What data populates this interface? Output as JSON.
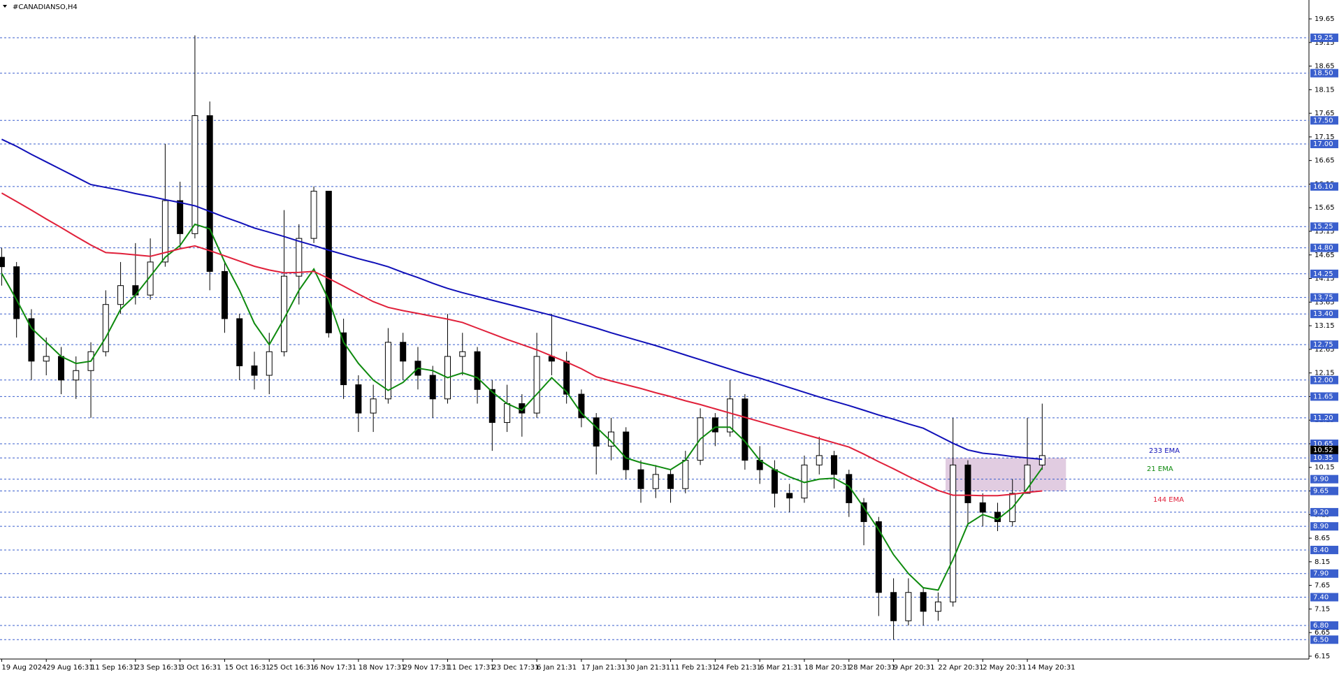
{
  "chart_data": {
    "type": "candlestick",
    "title": "#CANADIANSO,H4",
    "categories": [
      "19 Aug 2024",
      null,
      null,
      "29 Aug 16:31",
      null,
      null,
      "11 Sep 16:31",
      null,
      null,
      "23 Sep 16:31",
      null,
      null,
      "3 Oct 16:31",
      null,
      null,
      "15 Oct 16:31",
      null,
      null,
      "25 Oct 16:31",
      null,
      null,
      "6 Nov 17:31",
      null,
      null,
      "18 Nov 17:31",
      null,
      null,
      "29 Nov 17:31",
      null,
      null,
      "11 Dec 17:31",
      null,
      null,
      "23 Dec 17:31",
      null,
      null,
      "6 Jan 21:31",
      null,
      null,
      "17 Jan 21:31",
      null,
      null,
      "30 Jan 21:31",
      null,
      null,
      "11 Feb 21:31",
      null,
      null,
      "24 Feb 21:31",
      null,
      null,
      "6 Mar 21:31",
      null,
      null,
      "18 Mar 20:31",
      null,
      null,
      "28 Mar 20:31",
      null,
      null,
      "9 Apr 20:31",
      null,
      null,
      "22 Apr 20:31",
      null,
      null,
      "2 May 20:31",
      null,
      null,
      "14 May 20:31",
      null
    ],
    "open": [
      14.6,
      14.4,
      13.3,
      12.4,
      12.5,
      12.0,
      12.2,
      12.6,
      13.6,
      14.0,
      13.8,
      14.5,
      15.8,
      15.1,
      17.6,
      14.3,
      13.3,
      12.3,
      12.1,
      12.6,
      14.2,
      15.0,
      16.0,
      13.0,
      11.9,
      11.3,
      11.6,
      12.8,
      12.4,
      12.1,
      11.6,
      12.5,
      12.6,
      11.8,
      11.1,
      11.5,
      11.3,
      12.5,
      12.4,
      11.7,
      11.2,
      10.6,
      10.9,
      10.1,
      9.7,
      10.0,
      9.7,
      10.3,
      11.2,
      10.9,
      11.6,
      10.3,
      10.1,
      9.6,
      9.5,
      10.2,
      10.4,
      10.0,
      9.4,
      9.0,
      7.5,
      6.9,
      7.5,
      7.1,
      7.3,
      10.2,
      9.4,
      9.2,
      9.0,
      9.6,
      10.2
    ],
    "high": [
      14.8,
      14.5,
      13.5,
      12.9,
      12.7,
      12.5,
      12.8,
      13.9,
      14.5,
      14.9,
      15.0,
      17.0,
      16.2,
      19.3,
      17.9,
      14.5,
      13.4,
      12.6,
      13.0,
      15.6,
      15.3,
      16.1,
      16.0,
      13.3,
      12.1,
      11.9,
      13.1,
      13.0,
      12.7,
      12.3,
      13.4,
      13.0,
      12.7,
      12.0,
      11.9,
      11.7,
      13.0,
      13.4,
      12.6,
      11.8,
      11.3,
      11.2,
      11.0,
      10.3,
      10.2,
      10.1,
      10.5,
      11.4,
      11.3,
      12.0,
      11.7,
      10.6,
      10.3,
      9.8,
      10.4,
      10.8,
      10.5,
      10.1,
      9.5,
      9.1,
      7.8,
      7.8,
      7.6,
      7.5,
      11.2,
      10.3,
      9.6,
      9.4,
      9.9,
      11.2,
      11.5
    ],
    "low": [
      14.0,
      12.9,
      12.0,
      12.1,
      11.7,
      11.6,
      11.2,
      12.5,
      13.4,
      13.6,
      13.7,
      14.4,
      14.8,
      15.0,
      13.9,
      13.0,
      12.0,
      11.8,
      11.7,
      12.5,
      13.6,
      14.9,
      12.9,
      11.6,
      10.9,
      10.9,
      11.5,
      12.0,
      11.8,
      11.2,
      11.5,
      12.1,
      11.5,
      10.5,
      10.9,
      10.8,
      11.2,
      12.1,
      11.5,
      11.0,
      10.0,
      10.3,
      9.9,
      9.4,
      9.5,
      9.4,
      9.6,
      10.2,
      10.6,
      10.8,
      10.1,
      9.8,
      9.3,
      9.2,
      9.4,
      10.0,
      9.7,
      9.1,
      8.5,
      7.0,
      6.5,
      6.8,
      6.8,
      6.9,
      7.2,
      8.9,
      8.9,
      8.8,
      8.9,
      9.6,
      10.1
    ],
    "close": [
      14.4,
      13.3,
      12.4,
      12.5,
      12.0,
      12.2,
      12.6,
      13.6,
      14.0,
      13.8,
      14.5,
      15.8,
      15.1,
      17.6,
      14.3,
      13.3,
      12.3,
      12.1,
      12.6,
      14.2,
      15.0,
      16.0,
      13.0,
      11.9,
      11.3,
      11.6,
      12.8,
      12.4,
      12.1,
      11.6,
      12.5,
      12.6,
      11.8,
      11.1,
      11.5,
      11.3,
      12.5,
      12.4,
      11.7,
      11.2,
      10.6,
      10.9,
      10.1,
      9.7,
      10.0,
      9.7,
      10.3,
      11.2,
      10.9,
      11.6,
      10.3,
      10.1,
      9.6,
      9.5,
      10.2,
      10.4,
      10.0,
      9.4,
      9.0,
      7.5,
      6.9,
      7.5,
      7.1,
      7.3,
      10.2,
      9.4,
      9.2,
      9.0,
      9.6,
      10.2,
      10.4
    ],
    "up_color": "#ffffff",
    "down_color": "#000000",
    "wick_color": "#000000",
    "series": [
      {
        "name": "233 EMA",
        "color": "#1010b8",
        "values": [
          17.1,
          16.95,
          16.78,
          16.62,
          16.46,
          16.3,
          16.14,
          16.08,
          16.02,
          15.95,
          15.89,
          15.82,
          15.76,
          15.69,
          15.57,
          15.45,
          15.34,
          15.22,
          15.13,
          15.04,
          14.94,
          14.85,
          14.75,
          14.66,
          14.57,
          14.49,
          14.4,
          14.28,
          14.17,
          14.05,
          13.94,
          13.85,
          13.77,
          13.69,
          13.61,
          13.53,
          13.45,
          13.37,
          13.28,
          13.19,
          13.1,
          13.0,
          12.91,
          12.82,
          12.73,
          12.63,
          12.53,
          12.43,
          12.33,
          12.23,
          12.13,
          12.04,
          11.94,
          11.84,
          11.74,
          11.64,
          11.55,
          11.46,
          11.36,
          11.26,
          11.17,
          11.07,
          10.98,
          10.82,
          10.66,
          10.52,
          10.45,
          10.42,
          10.38,
          10.35,
          10.32
        ]
      },
      {
        "name": "21 EMA",
        "color": "#0e8a0e",
        "values": [
          14.26,
          13.7,
          13.1,
          12.8,
          12.5,
          12.35,
          12.4,
          12.9,
          13.5,
          13.8,
          14.2,
          14.6,
          14.85,
          15.3,
          15.2,
          14.5,
          13.9,
          13.2,
          12.75,
          13.3,
          13.9,
          14.35,
          13.7,
          12.8,
          12.35,
          12.0,
          11.78,
          11.95,
          12.25,
          12.2,
          12.05,
          12.15,
          12.05,
          11.75,
          11.5,
          11.36,
          11.7,
          12.05,
          11.75,
          11.3,
          11.0,
          10.7,
          10.35,
          10.25,
          10.18,
          10.1,
          10.3,
          10.75,
          11.0,
          11.0,
          10.7,
          10.3,
          10.1,
          9.95,
          9.83,
          9.9,
          9.92,
          9.75,
          9.3,
          8.83,
          8.3,
          7.9,
          7.6,
          7.55,
          8.2,
          8.95,
          9.15,
          9.05,
          9.3,
          9.7,
          10.14
        ]
      },
      {
        "name": "144 EMA",
        "color": "#e0203a",
        "values": [
          15.96,
          15.78,
          15.6,
          15.41,
          15.23,
          15.04,
          14.86,
          14.7,
          14.68,
          14.65,
          14.62,
          14.7,
          14.78,
          14.84,
          14.74,
          14.63,
          14.52,
          14.41,
          14.33,
          14.27,
          14.28,
          14.3,
          14.15,
          13.99,
          13.82,
          13.66,
          13.54,
          13.47,
          13.41,
          13.35,
          13.29,
          13.22,
          13.1,
          12.98,
          12.86,
          12.75,
          12.64,
          12.51,
          12.38,
          12.24,
          12.07,
          11.98,
          11.9,
          11.82,
          11.73,
          11.65,
          11.56,
          11.48,
          11.39,
          11.3,
          11.21,
          11.12,
          11.03,
          10.94,
          10.85,
          10.76,
          10.67,
          10.58,
          10.43,
          10.27,
          10.12,
          9.96,
          9.81,
          9.66,
          9.56,
          9.56,
          9.55,
          9.55,
          9.58,
          9.62,
          9.65
        ]
      }
    ],
    "levels": [
      19.25,
      {
        "value": 18.5,
        "label": "18.50"
      },
      {
        "value": 17.5,
        "label": "17.50"
      },
      {
        "value": 17,
        "label": "17.00"
      },
      {
        "value": 16.1,
        "label": "16.10"
      },
      15.25,
      {
        "value": 14.8,
        "label": "14.80"
      },
      14.25,
      13.75,
      {
        "value": 13.4,
        "label": "13.40"
      },
      12.75,
      {
        "value": 12,
        "label": "12.00"
      },
      11.65,
      {
        "value": 11.2,
        "label": "11.20"
      },
      10.65,
      10.35,
      {
        "value": 9.9,
        "label": "9.90"
      },
      9.65,
      {
        "value": 9.2,
        "label": "9.20"
      },
      {
        "value": 8.9,
        "label": "8.90"
      },
      {
        "value": 8.4,
        "label": "8.40"
      },
      {
        "value": 7.9,
        "label": "7.90"
      },
      {
        "value": 7.4,
        "label": "7.40"
      },
      {
        "value": 6.8,
        "label": "6.80"
      },
      {
        "value": 6.5,
        "label": "6.50"
      }
    ],
    "level_color": "#3a5fcd",
    "zone": {
      "low": 9.65,
      "high": 10.35,
      "color": "#d9bfd9"
    },
    "price_marker": 10.52,
    "ylim": [
      6.09,
      20.05
    ],
    "yticks": [
      19.65,
      19.15,
      18.65,
      18.15,
      17.65,
      17.15,
      16.65,
      16.15,
      15.65,
      15.15,
      14.65,
      14.15,
      13.65,
      13.15,
      12.65,
      12.15,
      11.65,
      11.15,
      10.65,
      10.15,
      9.65,
      9.15,
      8.65,
      8.15,
      7.65,
      7.15,
      6.65,
      6.15
    ]
  }
}
